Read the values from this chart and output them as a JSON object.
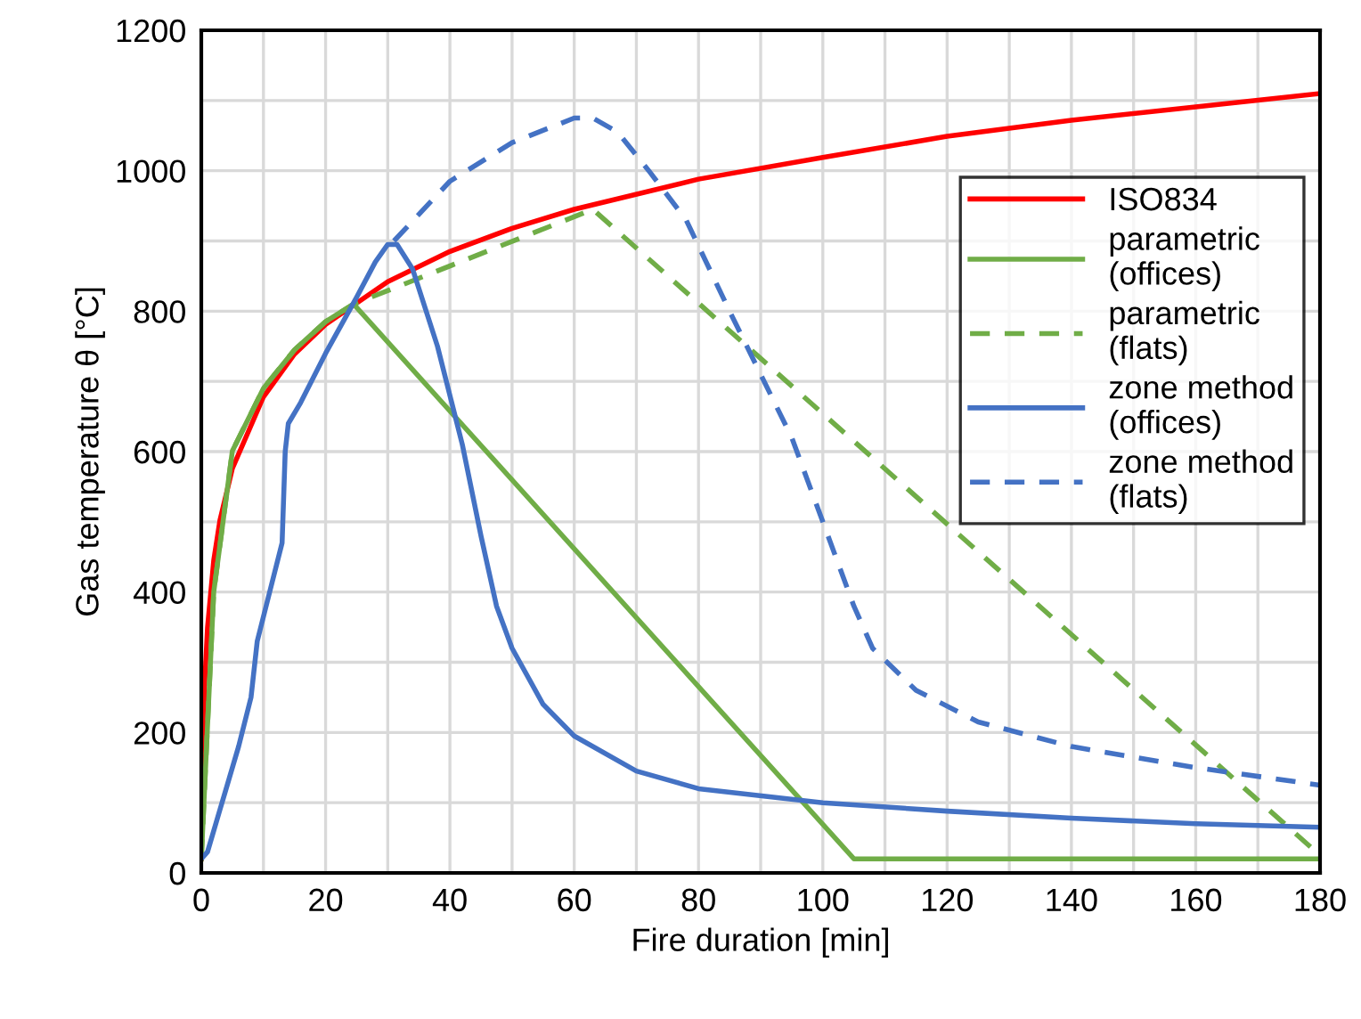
{
  "chart_data": {
    "type": "line",
    "xlabel": "Fire duration [min]",
    "ylabel": "Gas temperature θ [°C]",
    "xlim": [
      0,
      180
    ],
    "ylim": [
      0,
      1200
    ],
    "xticks": [
      0,
      {
        "value": 10,
        "label": null
      },
      20,
      {
        "value": 30,
        "label": null
      },
      40,
      {
        "value": 50,
        "label": null
      },
      60,
      {
        "value": 70,
        "label": null
      },
      80,
      {
        "value": 90,
        "label": null
      },
      100,
      {
        "value": 110,
        "label": null
      },
      120,
      {
        "value": 130,
        "label": null
      },
      140,
      {
        "value": 150,
        "label": null
      },
      160,
      {
        "value": 170,
        "label": null
      },
      180
    ],
    "yticks": [
      0,
      {
        "value": 100,
        "label": null
      },
      200,
      {
        "value": 300,
        "label": null
      },
      400,
      {
        "value": 500,
        "label": null
      },
      600,
      {
        "value": 700,
        "label": null
      },
      800,
      {
        "value": 900,
        "label": null
      },
      1000,
      {
        "value": 1100,
        "label": null
      },
      1200
    ],
    "grid": true,
    "legend": "right",
    "marker": "none",
    "series": [
      {
        "name": "ISO834",
        "color": "#ff0000",
        "line_style": "solid",
        "x": [
          0,
          0.5,
          1,
          2,
          3,
          5,
          10,
          15,
          20,
          30,
          40,
          50,
          60,
          80,
          100,
          120,
          140,
          160,
          180
        ],
        "values": [
          20,
          261,
          349,
          445,
          502,
          576,
          678,
          739,
          781,
          842,
          885,
          918,
          945,
          988,
          1019,
          1049,
          1072,
          1091,
          1110
        ]
      },
      {
        "name": "parametric\n(offices)",
        "color": "#70ad47",
        "line_style": "solid",
        "x": [
          0,
          2,
          5,
          10,
          15,
          20,
          24.5,
          105,
          180
        ],
        "values": [
          20,
          400,
          601,
          690,
          745,
          785,
          810,
          20,
          20
        ]
      },
      {
        "name": "parametric\n(flats)",
        "color": "#70ad47",
        "line_style": "dashed",
        "x": [
          0,
          2,
          5,
          10,
          15,
          20,
          24.5,
          63,
          180
        ],
        "values": [
          20,
          400,
          601,
          690,
          745,
          785,
          810,
          945,
          25
        ]
      },
      {
        "name": "zone method\n(offices)",
        "color": "#4472c4",
        "line_style": "solid",
        "x": [
          0,
          1,
          3,
          6,
          8,
          9,
          11,
          13,
          13.5,
          14,
          16,
          20,
          25,
          28,
          30,
          31.5,
          34,
          38,
          42,
          45,
          47.5,
          50,
          55,
          60,
          70,
          80,
          100,
          120,
          140,
          160,
          180
        ],
        "values": [
          20,
          30,
          90,
          180,
          250,
          330,
          400,
          470,
          600,
          640,
          670,
          740,
          820,
          870,
          895,
          895,
          860,
          750,
          610,
          480,
          380,
          320,
          240,
          195,
          145,
          120,
          100,
          88,
          78,
          70,
          65
        ]
      },
      {
        "name": "zone method\n(flats)",
        "color": "#4472c4",
        "line_style": "dashed",
        "x": [
          31,
          40,
          50,
          60,
          63,
          67,
          72,
          78,
          85,
          95,
          100,
          105,
          108,
          115,
          125,
          140,
          160,
          180
        ],
        "values": [
          900,
          985,
          1040,
          1075,
          1075,
          1055,
          1000,
          930,
          800,
          620,
          500,
          380,
          320,
          260,
          215,
          180,
          150,
          125
        ]
      }
    ]
  }
}
